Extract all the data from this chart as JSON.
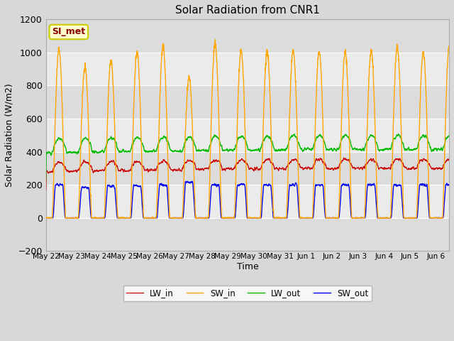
{
  "title": "Solar Radiation from CNR1",
  "xlabel": "Time",
  "ylabel": "Solar Radiation (W/m2)",
  "ylim": [
    -200,
    1200
  ],
  "yticks": [
    -200,
    0,
    200,
    400,
    600,
    800,
    1000,
    1200
  ],
  "annotation_text": "SI_met",
  "annotation_color": "#8B0000",
  "annotation_bg": "#FFFFCC",
  "annotation_border": "#CCCC00",
  "colors": {
    "LW_in": "#CC0000",
    "SW_in": "#FFA500",
    "LW_out": "#00BB00",
    "SW_out": "#0000EE"
  },
  "legend_labels": [
    "LW_in",
    "SW_in",
    "LW_out",
    "SW_out"
  ],
  "fig_bg_color": "#D8D8D8",
  "plot_bg_light": "#EBEBEB",
  "plot_bg_dark": "#DCDCDC",
  "grid_color": "#FFFFFF",
  "num_days": 16,
  "xtick_labels": [
    "May 22",
    "May 23",
    "May 24",
    "May 25",
    "May 26",
    "May 27",
    "May 28",
    "May 29",
    "May 30",
    "May 31",
    "Jun 1",
    "Jun 2",
    "Jun 3",
    "Jun 4",
    "Jun 5",
    "Jun 6"
  ],
  "sw_in_peaks": [
    1020,
    910,
    950,
    1000,
    1040,
    850,
    1050,
    1010,
    1000,
    1010,
    1010,
    1000,
    1010,
    1030,
    1000,
    1035
  ],
  "sw_out_peaks": [
    200,
    185,
    190,
    195,
    200,
    215,
    200,
    200,
    200,
    200,
    200,
    200,
    200,
    200,
    200,
    200
  ],
  "lw_in_base": 280,
  "lw_out_base": 390
}
